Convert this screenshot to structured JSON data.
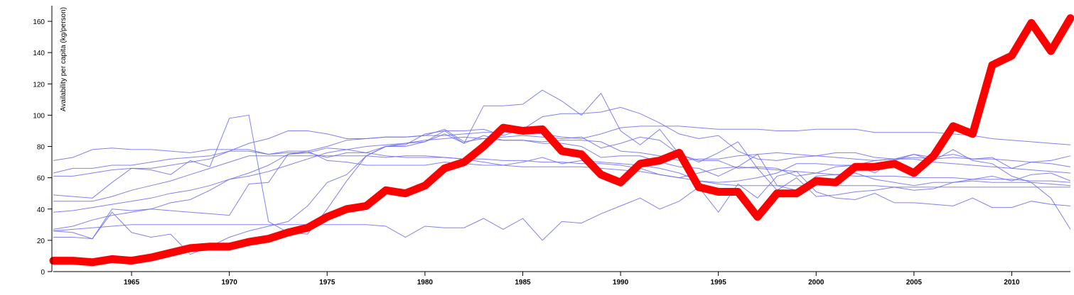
{
  "chart_data": {
    "type": "line",
    "ylabel": "Availability per capita (kg/person)",
    "xlabel": "",
    "xlim": [
      1961,
      2013
    ],
    "ylim": [
      0,
      170
    ],
    "x_ticks": [
      1965,
      1970,
      1975,
      1980,
      1985,
      1990,
      1995,
      2000,
      2005,
      2010
    ],
    "y_ticks": [
      0,
      20,
      40,
      60,
      80,
      100,
      120,
      140,
      160
    ],
    "highlight_color": "#ff0000",
    "background_color": "#6b6bf0",
    "x": [
      1961,
      1962,
      1963,
      1964,
      1965,
      1966,
      1967,
      1968,
      1969,
      1970,
      1971,
      1972,
      1973,
      1974,
      1975,
      1976,
      1977,
      1978,
      1979,
      1980,
      1981,
      1982,
      1983,
      1984,
      1985,
      1986,
      1987,
      1988,
      1989,
      1990,
      1991,
      1992,
      1993,
      1994,
      1995,
      1996,
      1997,
      1998,
      1999,
      2000,
      2001,
      2002,
      2003,
      2004,
      2005,
      2006,
      2007,
      2008,
      2009,
      2010,
      2011,
      2012,
      2013
    ],
    "highlight": [
      7,
      7,
      6,
      8,
      7,
      9,
      12,
      15,
      16,
      16,
      19,
      21,
      25,
      28,
      35,
      40,
      42,
      52,
      50,
      55,
      66,
      70,
      80,
      92,
      90,
      91,
      77,
      75,
      62,
      57,
      69,
      71,
      76,
      54,
      51,
      51,
      35,
      50,
      50,
      58,
      57,
      67,
      67,
      69,
      63,
      74,
      93,
      88,
      132,
      138,
      159,
      141,
      162
    ],
    "series": [
      {
        "values": [
          71,
          73,
          78,
          79,
          78,
          78,
          77,
          76,
          78,
          78,
          78,
          75,
          77,
          77,
          80,
          84,
          85,
          86,
          86,
          87,
          87,
          88,
          89,
          89,
          89,
          88,
          86,
          85,
          88,
          92,
          93,
          93,
          93,
          92,
          91,
          91,
          91,
          90,
          90,
          91,
          91,
          91,
          89,
          89,
          89,
          89,
          88,
          87,
          85,
          84,
          83,
          82,
          81
        ]
      },
      {
        "values": [
          63,
          66,
          66,
          68,
          68,
          70,
          72,
          73,
          74,
          77,
          82,
          85,
          90,
          90,
          88,
          85,
          85,
          86,
          86,
          87,
          91,
          83,
          85,
          86,
          87,
          86,
          85,
          86,
          79,
          82,
          86,
          84,
          75,
          71,
          71,
          66,
          67,
          66,
          61,
          63,
          67,
          68,
          71,
          72,
          75,
          73,
          75,
          72,
          73,
          66,
          70,
          71,
          74
        ]
      },
      {
        "values": [
          61,
          61,
          63,
          65,
          66,
          65,
          62,
          71,
          67,
          98,
          100,
          32,
          25,
          24,
          40,
          58,
          74,
          80,
          81,
          88,
          90,
          82,
          106,
          106,
          107,
          116,
          109,
          100,
          114,
          90,
          81,
          91,
          75,
          70,
          76,
          83,
          66,
          52,
          60,
          48,
          49,
          51,
          52,
          54,
          52,
          53,
          57,
          59,
          61,
          58,
          62,
          63,
          58
        ]
      },
      {
        "values": [
          49,
          48,
          47,
          57,
          66,
          66,
          68,
          70,
          72,
          77,
          77,
          75,
          76,
          76,
          73,
          76,
          76,
          80,
          82,
          83,
          90,
          90,
          91,
          87,
          91,
          99,
          101,
          101,
          102,
          105,
          101,
          95,
          88,
          85,
          87,
          77,
          72,
          71,
          73,
          74,
          76,
          76,
          73,
          72,
          73,
          72,
          73,
          72,
          72,
          71,
          70,
          69,
          67
        ]
      },
      {
        "values": [
          38,
          39,
          41,
          43,
          45,
          47,
          50,
          52,
          55,
          59,
          61,
          64,
          68,
          72,
          76,
          78,
          80,
          81,
          82,
          84,
          85,
          86,
          85,
          84,
          84,
          83,
          84,
          84,
          83,
          77,
          76,
          74,
          71,
          72,
          72,
          74,
          75,
          76,
          75,
          74,
          73,
          72,
          71,
          72,
          72,
          70,
          69,
          68,
          67,
          66,
          65,
          64,
          63
        ]
      },
      {
        "values": [
          27,
          29,
          33,
          36,
          38,
          40,
          39,
          38,
          37,
          36,
          56,
          57,
          75,
          76,
          79,
          78,
          76,
          74,
          73,
          73,
          73,
          72,
          72,
          71,
          71,
          70,
          70,
          69,
          69,
          68,
          66,
          62,
          60,
          63,
          66,
          67,
          66,
          65,
          64,
          63,
          62,
          61,
          61,
          61,
          60,
          60,
          60,
          59,
          59,
          59,
          58,
          58,
          57
        ]
      },
      {
        "values": [
          22,
          22,
          21,
          40,
          39,
          40,
          44,
          46,
          52,
          59,
          63,
          68,
          75,
          77,
          71,
          70,
          68,
          68,
          68,
          68,
          70,
          69,
          68,
          68,
          70,
          73,
          69,
          71,
          70,
          69,
          68,
          66,
          63,
          58,
          57,
          58,
          60,
          63,
          69,
          69,
          68,
          68,
          63,
          71,
          75,
          71,
          78,
          71,
          69,
          61,
          57,
          47,
          27
        ]
      },
      {
        "values": [
          26,
          25,
          21,
          38,
          25,
          22,
          24,
          11,
          16,
          22,
          26,
          29,
          32,
          42,
          57,
          62,
          74,
          80,
          80,
          83,
          88,
          82,
          87,
          84,
          84,
          82,
          82,
          80,
          73,
          74,
          74,
          70,
          67,
          66,
          61,
          67,
          75,
          55,
          52,
          61,
          62,
          63,
          59,
          57,
          55,
          57,
          57,
          58,
          57,
          57,
          57,
          56,
          55
        ]
      },
      {
        "values": [
          45,
          45,
          45,
          48,
          52,
          55,
          58,
          62,
          66,
          70,
          74,
          74,
          74,
          74,
          74,
          74,
          74,
          73,
          74,
          74,
          73,
          72,
          70,
          68,
          67,
          67,
          67,
          67,
          66,
          65,
          64,
          62,
          60,
          58,
          56,
          55,
          55,
          55,
          55,
          55,
          55,
          55,
          55,
          54,
          54,
          54,
          54,
          54,
          54,
          54,
          54,
          54,
          54
        ]
      },
      {
        "values": [
          26,
          27,
          28,
          29,
          30,
          30,
          30,
          30,
          30,
          30,
          30,
          30,
          30,
          30,
          30,
          30,
          30,
          29,
          22,
          29,
          28,
          28,
          34,
          27,
          34,
          20,
          32,
          31,
          37,
          42,
          47,
          40,
          45,
          54,
          38,
          56,
          47,
          61,
          64,
          51,
          47,
          46,
          50,
          44,
          44,
          43,
          42,
          47,
          41,
          41,
          45,
          43,
          42
        ]
      }
    ]
  }
}
